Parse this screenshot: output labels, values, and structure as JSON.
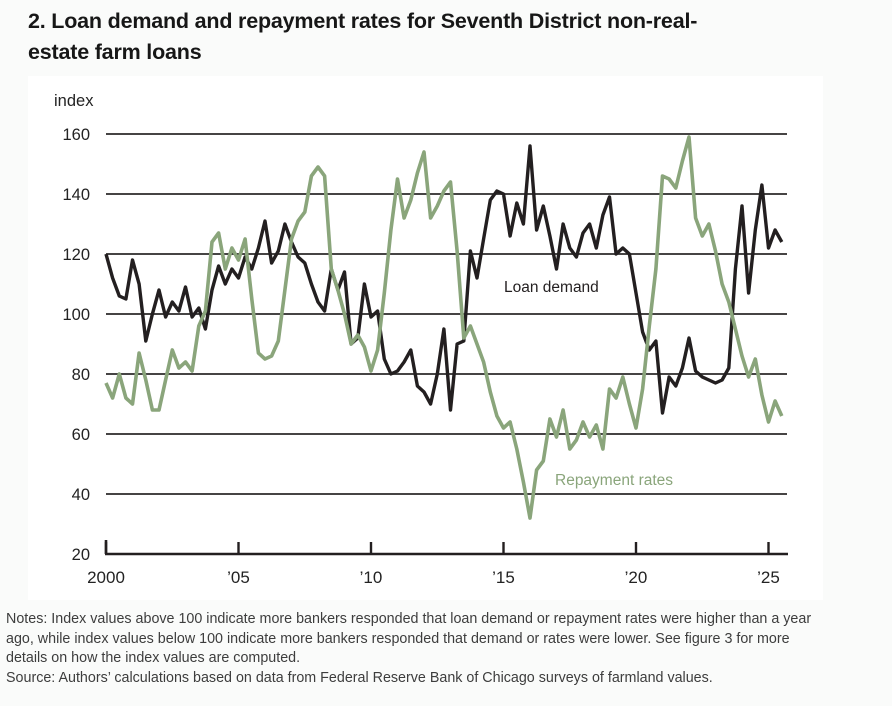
{
  "header": {
    "title_line1": "2. Loan demand and repayment rates for Seventh District non-real-",
    "title_line2": "estate farm loans",
    "figure_number": "2"
  },
  "chart": {
    "y_axis_unit": "index",
    "loan_demand_label": "Loan demand",
    "repayment_rates_label": "Repayment rates",
    "colors": {
      "loan_demand": "#231f20",
      "repayment_rates": "#8aa57b",
      "grid": "#2b2a29",
      "axis": "#231f20",
      "panel_background": "#ffffff",
      "page_background": "#fafbfa"
    }
  },
  "footer": {
    "notes_lines": [
      "Notes: Index values above 100 indicate more bankers responded that loan demand or repayment rates were higher than a year",
      "ago, while index values below 100 indicate more bankers responded that demand or rates were lower. See figure 3 for more",
      "details on how the index values are computed."
    ],
    "source": "Source: Authors’ calculations based on data from Federal Reserve Bank of Chicago surveys of farmland values."
  },
  "chart_data": {
    "type": "line",
    "title": "2. Loan demand and repayment rates for Seventh District non-real-estate farm loans",
    "xlabel": "",
    "ylabel": "index",
    "ylim": [
      20,
      160
    ],
    "yticks": [
      20,
      40,
      60,
      80,
      100,
      120,
      140,
      160
    ],
    "xlim": [
      2000,
      2025.75
    ],
    "xticks": [
      2000,
      2005,
      2010,
      2015,
      2020,
      2025
    ],
    "xtick_labels": [
      "2000",
      "’05",
      "’10",
      "’15",
      "’20",
      "’25"
    ],
    "grid": "horizontal",
    "legend_position": "inline-labels",
    "x_step_years": 0.25,
    "x_start": 2000.0,
    "series": [
      {
        "name": "Loan demand",
        "color": "#231f20",
        "values": [
          120,
          112,
          106,
          105,
          118,
          110,
          91,
          100,
          108,
          99,
          104,
          101,
          109,
          99,
          102,
          95,
          108,
          116,
          110,
          115,
          112,
          119,
          115,
          122,
          131,
          117,
          121,
          130,
          124,
          119,
          117,
          110,
          104,
          101,
          115,
          108,
          114,
          90,
          92,
          110,
          99,
          101,
          85,
          80,
          81,
          84,
          88,
          76,
          74,
          70,
          80,
          95,
          68,
          90,
          91,
          121,
          112,
          125,
          138,
          141,
          140,
          126,
          137,
          130,
          156,
          128,
          136,
          126,
          115,
          130,
          122,
          119,
          127,
          130,
          122,
          133,
          139,
          120,
          122,
          120,
          107,
          94,
          88,
          91,
          67,
          79,
          76,
          82,
          92,
          81,
          79,
          78,
          77,
          78,
          82,
          115,
          136,
          107,
          128,
          143,
          122,
          128,
          124
        ]
      },
      {
        "name": "Repayment rates",
        "color": "#8aa57b",
        "values": [
          77,
          72,
          80,
          72,
          70,
          87,
          78,
          68,
          68,
          78,
          88,
          82,
          84,
          81,
          96,
          101,
          124,
          127,
          115,
          122,
          118,
          125,
          105,
          87,
          85,
          86,
          91,
          108,
          125,
          131,
          134,
          146,
          149,
          146,
          115,
          108,
          100,
          90,
          93,
          89,
          81,
          88,
          107,
          128,
          145,
          132,
          138,
          147,
          154,
          132,
          136,
          141,
          144,
          121,
          92,
          96,
          90,
          84,
          74,
          66,
          62,
          64,
          55,
          44,
          32,
          48,
          51,
          65,
          59,
          68,
          55,
          58,
          64,
          59,
          63,
          55,
          75,
          72,
          79,
          70,
          62,
          75,
          96,
          115,
          146,
          145,
          142,
          151,
          159,
          132,
          126,
          130,
          121,
          110,
          104,
          95,
          86,
          79,
          85,
          73,
          64,
          71,
          66
        ]
      }
    ]
  }
}
